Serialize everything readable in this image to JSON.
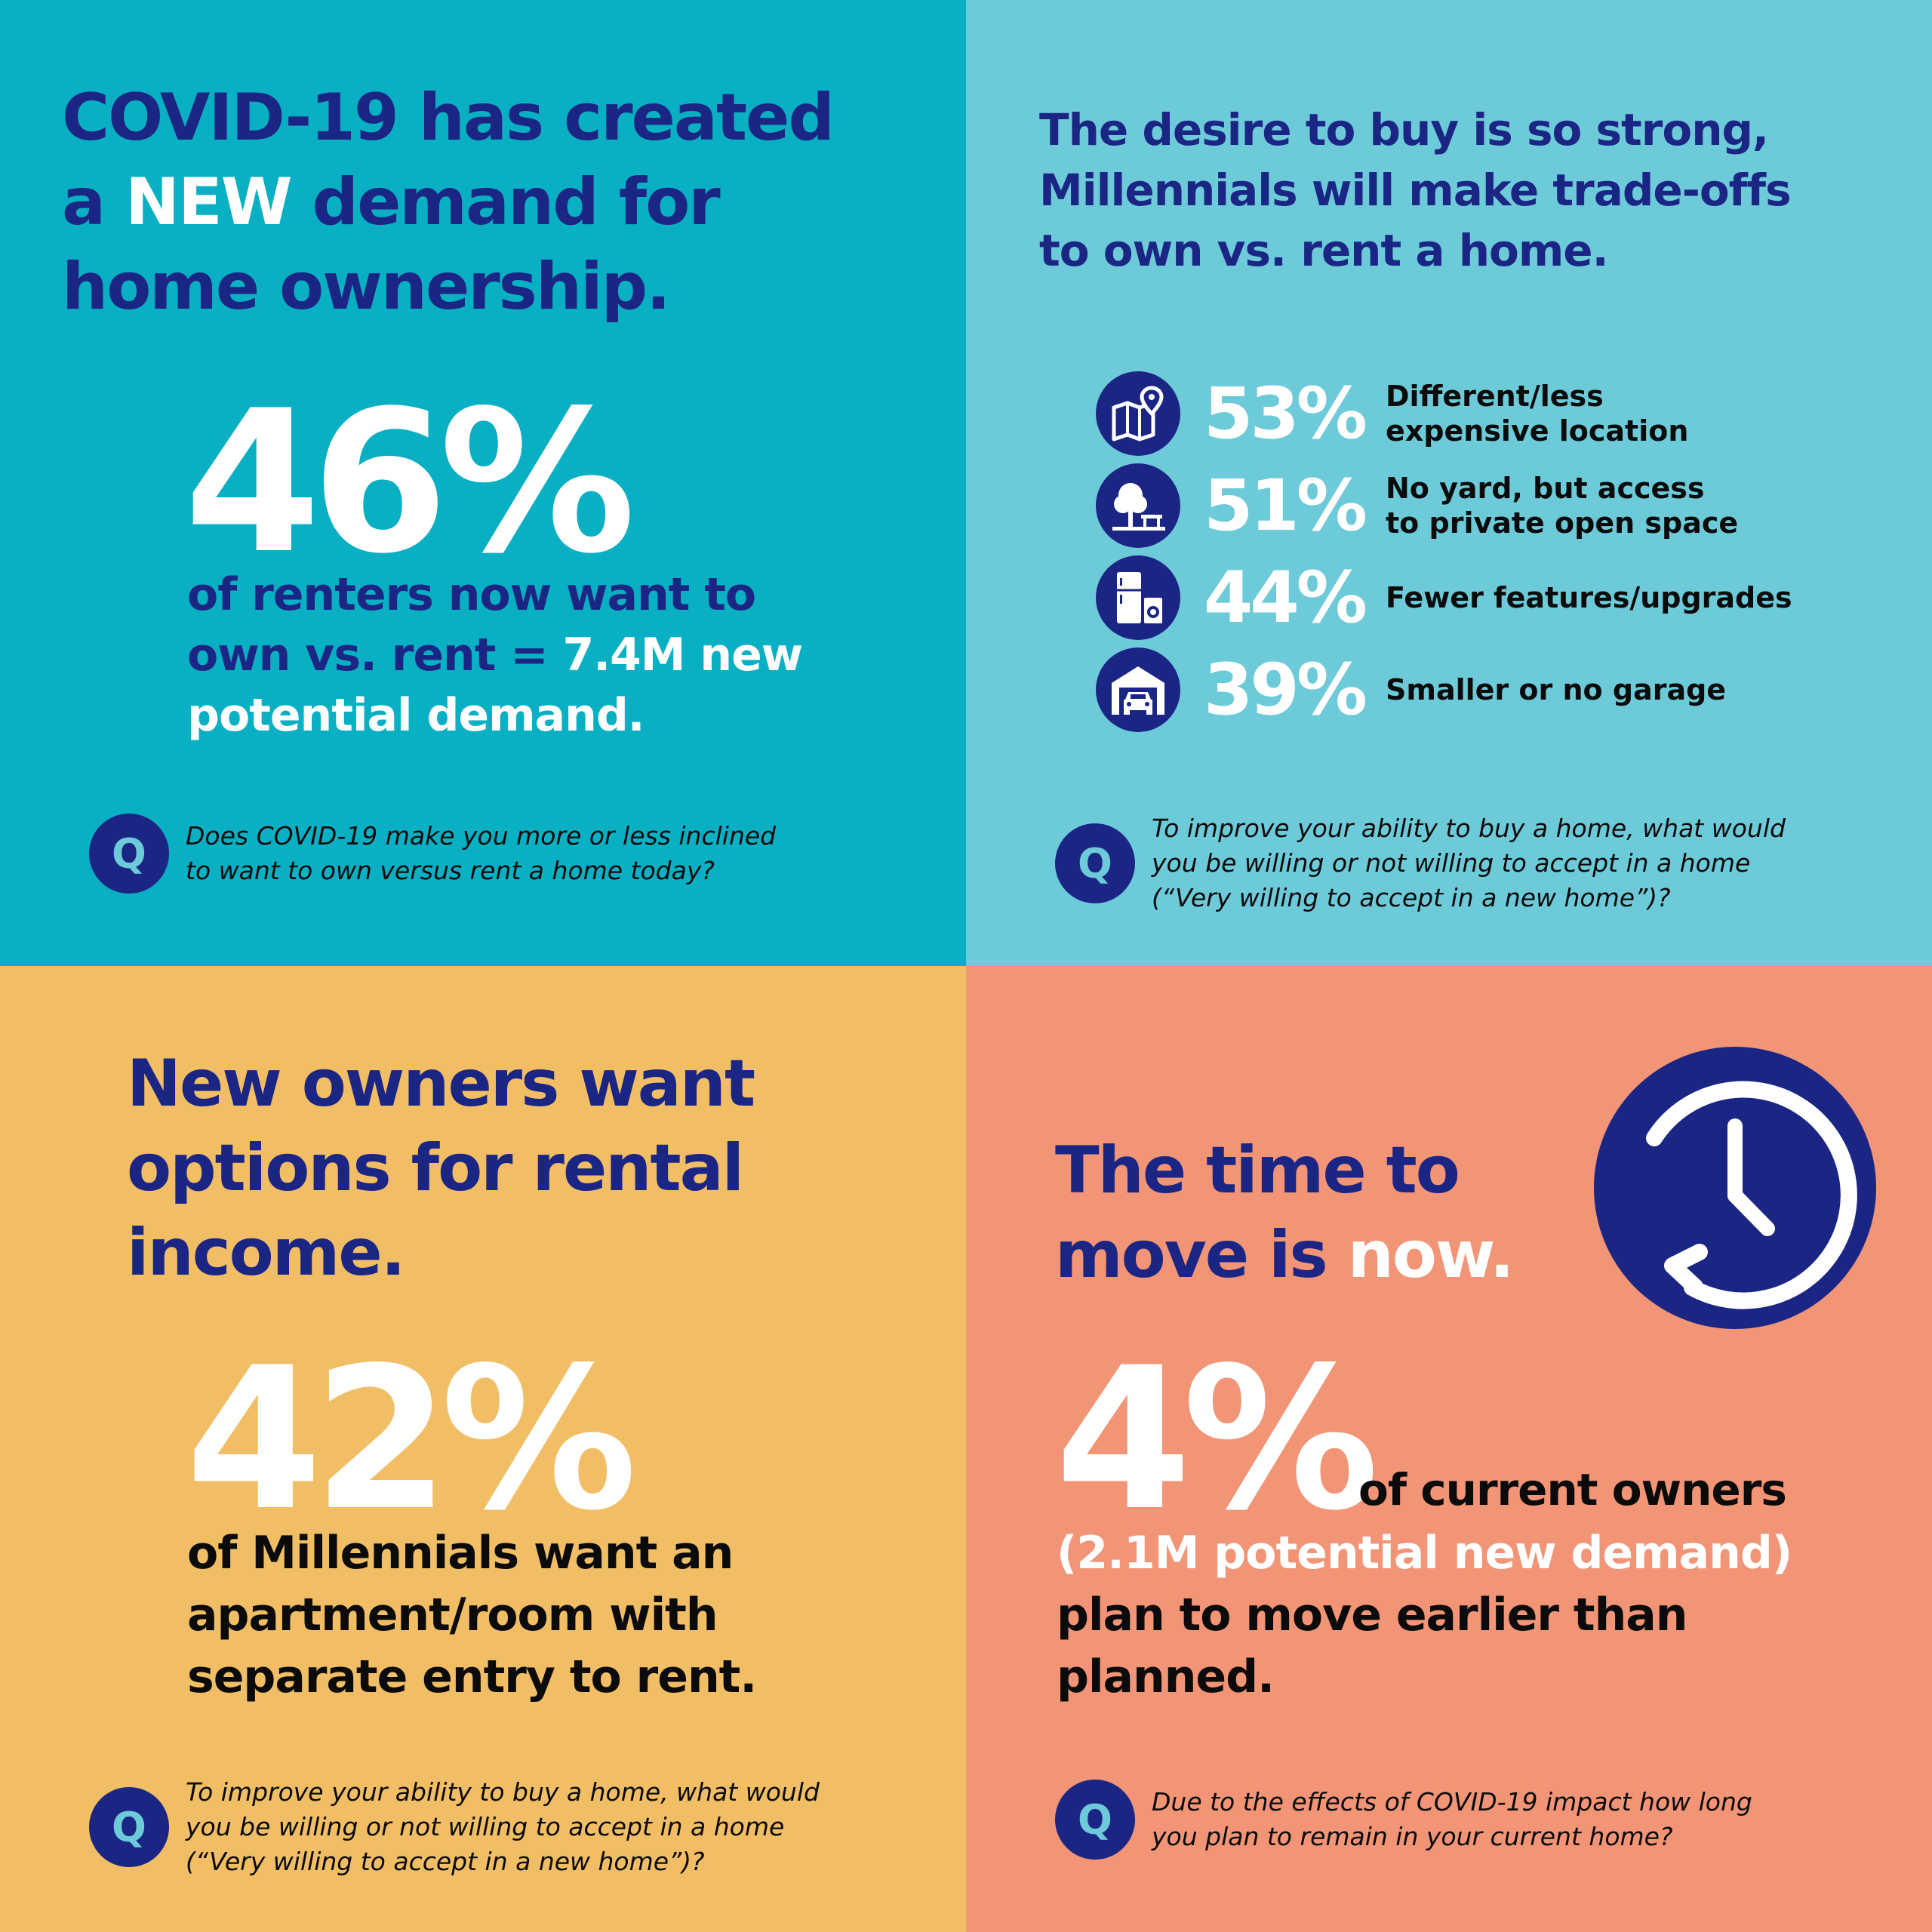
{
  "top_left": {
    "headline": {
      "part1": "COVID-19 has created",
      "part2": "a ",
      "emphasis": "NEW",
      "part3": " demand for",
      "part4": "home ownership."
    },
    "stat": "46%",
    "stat_desc": {
      "line1": "of renters now want to",
      "line2": "own vs. rent = ",
      "highlight": "7.4M new",
      "line3": "potential demand."
    },
    "question": {
      "icon_letter": "Q",
      "line1": "Does COVID-19 make you more or less inclined",
      "line2": "to want to own versus rent a home today?"
    }
  },
  "top_right": {
    "headline": {
      "line1": "The desire to buy is so strong,",
      "line2": "Millennials will make trade-offs",
      "line3": "to own vs. rent a home."
    },
    "tradeoffs": [
      {
        "icon": "map-pin-icon",
        "percent": "53%",
        "line1": "Different/less",
        "line2": "expensive location"
      },
      {
        "icon": "tree-bench-icon",
        "percent": "51%",
        "line1": "No yard, but access",
        "line2": "to private open space"
      },
      {
        "icon": "appliances-icon",
        "percent": "44%",
        "line1": "Fewer features/upgrades",
        "line2": ""
      },
      {
        "icon": "garage-car-icon",
        "percent": "39%",
        "line1": "Smaller or no garage",
        "line2": ""
      }
    ],
    "question": {
      "icon_letter": "Q",
      "line1": "To improve your ability to buy a home, what would",
      "line2": "you be willing or not willing to accept in a home",
      "line3": "(“Very willing to accept in a new home”)?"
    }
  },
  "bottom_left": {
    "headline": {
      "line1": "New owners want",
      "line2": "options for rental",
      "line3": "income."
    },
    "stat": "42%",
    "stat_desc": {
      "line1": "of Millennials want an",
      "line2": "apartment/room with",
      "line3": "separate entry to rent."
    },
    "question": {
      "icon_letter": "Q",
      "line1": "To improve your ability to buy a home, what would",
      "line2": "you be willing or not willing to accept in a home",
      "line3": "(“Very willing to accept in a new home”)?"
    }
  },
  "bottom_right": {
    "headline": {
      "line1": "The time to",
      "line2": "move is ",
      "emphasis": "now."
    },
    "clock_icon": "clock-icon",
    "stat": "4%",
    "stat_desc": {
      "inline": "of current owners",
      "highlight": "(2.1M potential new demand)",
      "line2": "plan to move earlier than",
      "line3": "planned."
    },
    "question": {
      "icon_letter": "Q",
      "line1": "Due to the effects of COVID-19 impact how long",
      "line2": "you plan to remain in your current home?"
    }
  },
  "colors": {
    "navy": "#1b2584",
    "teal": "#09afc2",
    "light_teal": "#6dcad8",
    "yellow": "#f1be66",
    "salmon": "#f29476",
    "q_letter": "#6dcad8"
  }
}
